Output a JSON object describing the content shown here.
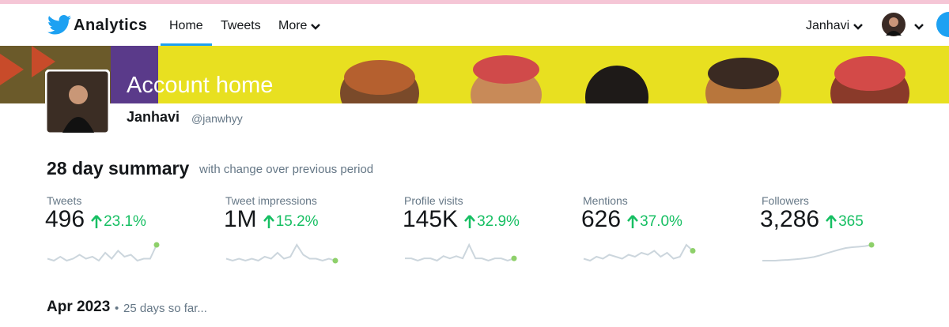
{
  "nav": {
    "brand": "Analytics",
    "tabs": [
      "Home",
      "Tweets",
      "More"
    ],
    "user": "Janhavi"
  },
  "header": {
    "title": "Account home",
    "name": "Janhavi",
    "handle": "@janwhyy"
  },
  "summary": {
    "title": "28 day summary",
    "subtitle": "with change over previous period",
    "metrics": [
      {
        "label": "Tweets",
        "value": "496",
        "change": "23.1%",
        "sparkline": [
          3,
          2,
          4,
          2,
          3,
          5,
          3,
          4,
          2,
          6,
          3,
          7,
          4,
          5,
          2,
          3,
          3,
          10
        ]
      },
      {
        "label": "Tweet impressions",
        "value": "1M",
        "change": "15.2%",
        "sparkline": [
          2,
          1,
          2,
          1,
          2,
          1,
          3,
          2,
          5,
          2,
          3,
          9,
          4,
          2,
          2,
          1,
          2,
          1
        ]
      },
      {
        "label": "Profile visits",
        "value": "145K",
        "change": "32.9%",
        "sparkline": [
          2,
          2,
          1,
          2,
          2,
          1,
          3,
          2,
          3,
          2,
          8,
          2,
          2,
          1,
          2,
          2,
          1,
          2
        ]
      },
      {
        "label": "Mentions",
        "value": "626",
        "change": "37.0%",
        "sparkline": [
          2,
          1,
          3,
          2,
          4,
          3,
          2,
          4,
          3,
          5,
          4,
          6,
          3,
          5,
          2,
          3,
          9,
          6
        ]
      },
      {
        "label": "Followers",
        "value": "3,286",
        "change": "365",
        "sparkline": [
          1,
          1,
          1,
          1.2,
          1.3,
          1.5,
          1.7,
          2,
          2.4,
          3,
          3.8,
          4.5,
          5.2,
          5.8,
          6.1,
          6.3,
          6.5,
          7
        ]
      }
    ]
  },
  "period": {
    "month": "Apr 2023",
    "separator": "•",
    "note": "25 days so far..."
  }
}
